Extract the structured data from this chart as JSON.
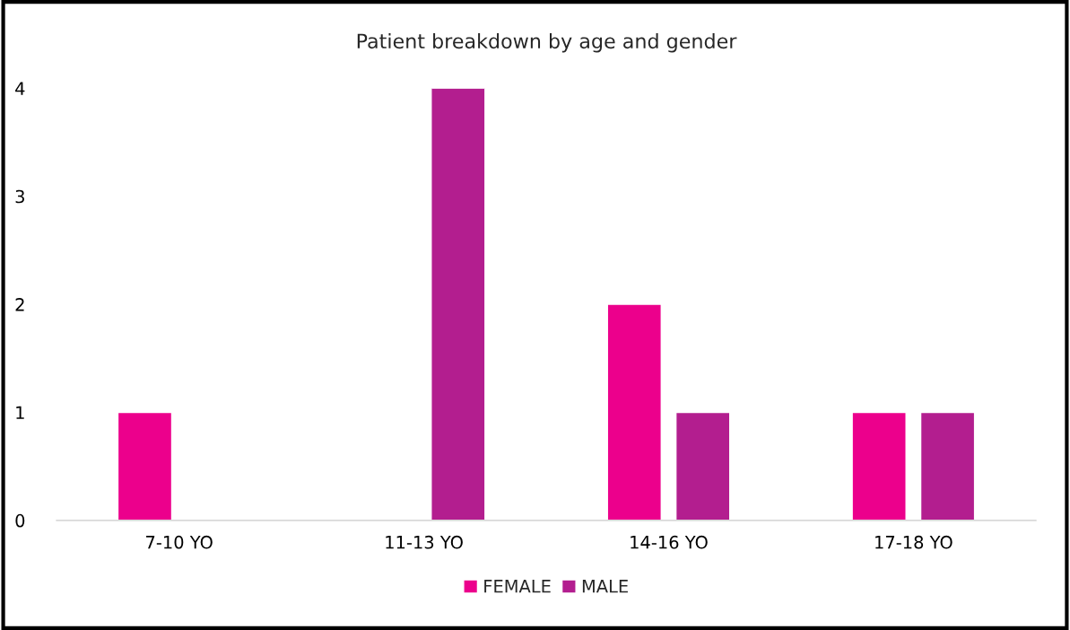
{
  "chart_data": {
    "type": "bar",
    "title": "Patient breakdown by age and gender",
    "categories": [
      "7-10 YO",
      "11-13 YO",
      "14-16 YO",
      "17-18 YO"
    ],
    "series": [
      {
        "name": "FEMALE",
        "color": "#ec008c",
        "values": [
          1,
          null,
          2,
          1
        ]
      },
      {
        "name": "MALE",
        "color": "#b31e8f",
        "values": [
          null,
          4,
          1,
          1
        ]
      }
    ],
    "ylim": [
      0,
      4
    ],
    "yticks": [
      0,
      1,
      2,
      3,
      4
    ],
    "grid": false,
    "legend": "bottom"
  }
}
